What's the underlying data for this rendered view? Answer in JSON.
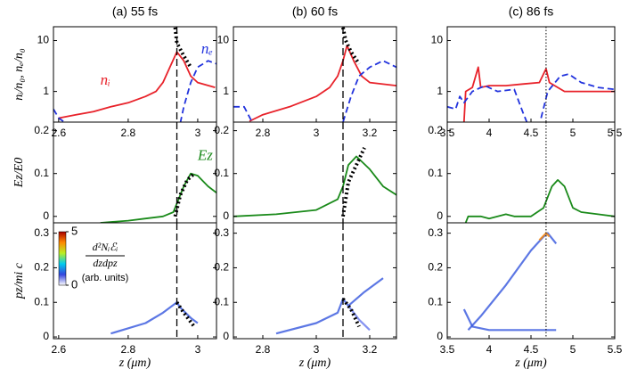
{
  "chart_data": [
    {
      "type": "line",
      "title": "(a) 55 fs",
      "ylabel": "nᵢ/n₀,  nₑ/n₀",
      "log": true,
      "xlim": [
        2.585,
        3.054
      ],
      "xticks": [
        2.6,
        2.8,
        3
      ],
      "ylim": [
        0.25,
        18.7
      ],
      "yticks": [
        1,
        10
      ],
      "vline": 2.94,
      "vline_style": "dashed",
      "annotations": [
        {
          "text": "nᵢ",
          "color": "#e8222a"
        },
        {
          "text": "nₑ",
          "color": "#2233dd"
        }
      ],
      "series": [
        {
          "color": "#e8222a",
          "style": "solid",
          "x": [
            2.6,
            2.65,
            2.7,
            2.75,
            2.8,
            2.85,
            2.88,
            2.9,
            2.92,
            2.94,
            2.96,
            2.98,
            3.0,
            3.05
          ],
          "values": [
            0.3,
            0.35,
            0.4,
            0.5,
            0.6,
            0.8,
            1.0,
            1.5,
            3,
            6,
            4,
            2,
            1.5,
            1.2
          ]
        },
        {
          "color": "#2233dd",
          "style": "dashed",
          "x": [
            2.585,
            2.6,
            2.62,
            null,
            2.95,
            2.96,
            2.98,
            3.0,
            3.03,
            3.054
          ],
          "values": [
            0.45,
            0.3,
            0.24,
            null,
            0.24,
            0.5,
            1.5,
            3,
            4,
            3.5
          ]
        },
        {
          "color": "#000000",
          "style": "dotted",
          "x": [
            2.935,
            2.94,
            2.96,
            2.98
          ],
          "values": [
            18,
            9,
            5,
            3
          ]
        }
      ]
    },
    {
      "type": "line",
      "title": "(b) 60 fs",
      "log": true,
      "xlim": [
        2.69,
        3.3
      ],
      "xticks": [
        2.8,
        3,
        3.2
      ],
      "ylim": [
        0.25,
        18.7
      ],
      "yticks": [
        1,
        10
      ],
      "vline": 3.1,
      "vline_style": "dashed",
      "series": [
        {
          "color": "#e8222a",
          "style": "solid",
          "x": [
            2.75,
            2.8,
            2.9,
            3.0,
            3.05,
            3.08,
            3.1,
            3.115,
            3.14,
            3.17,
            3.2,
            3.3
          ],
          "values": [
            0.26,
            0.35,
            0.5,
            0.8,
            1.2,
            2,
            4,
            8,
            4,
            2,
            1.5,
            1.3
          ]
        },
        {
          "color": "#2233dd",
          "style": "dashed",
          "x": [
            2.69,
            2.73,
            2.76,
            null,
            3.1,
            3.13,
            3.16,
            3.2,
            3.25,
            3.3
          ],
          "values": [
            0.5,
            0.5,
            0.25,
            null,
            0.25,
            0.8,
            2,
            3,
            4,
            3
          ]
        },
        {
          "color": "#000000",
          "style": "dotted",
          "x": [
            3.1,
            3.11,
            3.13,
            3.16
          ],
          "values": [
            18,
            10,
            6,
            3.5
          ]
        }
      ]
    },
    {
      "type": "line",
      "title": "(c) 86 fs",
      "log": true,
      "xlim": [
        3.5,
        5.5
      ],
      "xticks": [
        3.5,
        4,
        4.5,
        5,
        5.5
      ],
      "ylim": [
        0.25,
        18.7
      ],
      "yticks": [
        1,
        10
      ],
      "vline": 4.68,
      "vline_style": "dotted",
      "series": [
        {
          "color": "#e8222a",
          "style": "solid",
          "x": [
            3.7,
            3.72,
            3.8,
            3.87,
            3.9,
            4.0,
            4.2,
            4.4,
            4.6,
            4.68,
            4.72,
            4.9,
            5.1,
            5.3,
            5.5
          ],
          "values": [
            0.25,
            1.0,
            1.2,
            3,
            1.2,
            1.3,
            1.3,
            1.4,
            1.5,
            2.8,
            1.5,
            1.0,
            1.0,
            1.0,
            1.0
          ]
        },
        {
          "color": "#2233dd",
          "style": "dashed",
          "x": [
            3.5,
            3.6,
            3.65,
            3.7,
            3.8,
            3.95,
            4.1,
            4.3,
            4.4,
            4.45,
            null,
            4.62,
            4.7,
            4.85,
            4.95,
            5.1,
            5.3,
            5.5
          ],
          "values": [
            0.5,
            0.45,
            0.8,
            0.6,
            1.0,
            1.3,
            1.0,
            1.1,
            0.4,
            0.25,
            null,
            0.3,
            1.0,
            2,
            2.2,
            1.5,
            1.2,
            1.1
          ]
        }
      ]
    },
    {
      "type": "line",
      "ylabel": "Ez/E0",
      "xlim": [
        2.585,
        3.054
      ],
      "ylim": [
        -0.015,
        0.22
      ],
      "yticks": [
        0,
        0.1,
        0.2
      ],
      "vline": 2.94,
      "vline_style": "dashed",
      "annotations": [
        {
          "text": "Ez",
          "color": "#1a8a1a"
        }
      ],
      "series": [
        {
          "color": "#1a8a1a",
          "style": "solid",
          "x": [
            2.72,
            2.8,
            2.85,
            2.9,
            2.93,
            2.94,
            2.96,
            2.98,
            3.0,
            3.03,
            3.054
          ],
          "values": [
            -0.015,
            -0.01,
            -0.005,
            0,
            0.01,
            0.03,
            0.07,
            0.1,
            0.095,
            0.07,
            0.055
          ]
        },
        {
          "color": "#000000",
          "style": "dotted",
          "x": [
            2.935,
            2.95,
            2.97,
            2.99
          ],
          "values": [
            0,
            0.05,
            0.085,
            0.1
          ]
        }
      ]
    },
    {
      "type": "line",
      "xlim": [
        2.69,
        3.3
      ],
      "ylim": [
        -0.015,
        0.22
      ],
      "yticks": [
        0,
        0.1,
        0.2
      ],
      "vline": 3.1,
      "vline_style": "dashed",
      "series": [
        {
          "color": "#1a8a1a",
          "style": "solid",
          "x": [
            2.69,
            2.85,
            3.0,
            3.08,
            3.1,
            3.12,
            3.15,
            3.2,
            3.25,
            3.3
          ],
          "values": [
            0.0,
            0.005,
            0.015,
            0.04,
            0.07,
            0.12,
            0.14,
            0.11,
            0.07,
            0.05
          ]
        },
        {
          "color": "#000000",
          "style": "dotted",
          "x": [
            3.1,
            3.12,
            3.15,
            3.18
          ],
          "values": [
            0,
            0.08,
            0.12,
            0.16
          ]
        }
      ]
    },
    {
      "type": "line",
      "xlim": [
        3.5,
        5.5
      ],
      "ylim": [
        -0.015,
        0.22
      ],
      "yticks": [
        0,
        0.1,
        0.2
      ],
      "vline": 4.68,
      "vline_style": "dotted",
      "series": [
        {
          "color": "#1a8a1a",
          "style": "solid",
          "x": [
            3.72,
            3.75,
            3.9,
            4.0,
            4.2,
            4.3,
            4.5,
            4.65,
            4.75,
            4.82,
            4.9,
            5.0,
            5.1,
            5.3,
            5.5
          ],
          "values": [
            -0.015,
            0.0,
            0.0,
            -0.005,
            0.005,
            0.0,
            0.0,
            0.02,
            0.07,
            0.085,
            0.07,
            0.02,
            0.01,
            0.005,
            0.0
          ]
        }
      ]
    },
    {
      "type": "line",
      "ylabel": "pz/mi c",
      "xlabel": "z (μm)",
      "xlim": [
        2.585,
        3.054
      ],
      "xticks": [
        2.6,
        2.8,
        3
      ],
      "ylim": [
        -0.005,
        0.33
      ],
      "yticks": [
        0,
        0.1,
        0.2,
        0.3
      ],
      "vline": 2.94,
      "vline_style": "dashed",
      "colorbar": {
        "ticks": [
          0,
          5
        ],
        "numerator": "d²Nᵢℰᵢ",
        "denominator": "dzdpz",
        "units": "(arb. units)"
      },
      "series": [
        {
          "color": "#3355dd",
          "style": "band",
          "x": [
            2.75,
            2.85,
            2.9,
            2.94,
            2.95,
            2.98,
            3.0
          ],
          "values": [
            0.01,
            0.04,
            0.07,
            0.1,
            0.085,
            0.055,
            0.04
          ]
        },
        {
          "color": "#000000",
          "style": "dotted",
          "x": [
            2.94,
            2.96,
            2.99
          ],
          "values": [
            0.1,
            0.07,
            0.03
          ]
        }
      ]
    },
    {
      "type": "line",
      "xlabel": "z (μm)",
      "xlim": [
        2.69,
        3.3
      ],
      "xticks": [
        2.8,
        3,
        3.2
      ],
      "ylim": [
        -0.005,
        0.33
      ],
      "yticks": [
        0,
        0.1,
        0.2,
        0.3
      ],
      "vline": 3.1,
      "vline_style": "dashed",
      "series": [
        {
          "color": "#3355dd",
          "style": "band",
          "x": [
            2.85,
            3.0,
            3.08,
            3.1,
            3.12,
            3.18,
            3.25
          ],
          "values": [
            0.01,
            0.04,
            0.07,
            0.11,
            0.09,
            0.13,
            0.17
          ]
        },
        {
          "color": "#6677ee",
          "style": "band",
          "x": [
            3.12,
            3.16,
            3.2
          ],
          "values": [
            0.09,
            0.05,
            0.02
          ]
        },
        {
          "color": "#000000",
          "style": "dotted",
          "x": [
            3.1,
            3.13,
            3.16
          ],
          "values": [
            0.11,
            0.08,
            0.03
          ]
        }
      ]
    },
    {
      "type": "line",
      "xlabel": "z (μm)",
      "xlim": [
        3.5,
        5.5
      ],
      "xticks": [
        3.5,
        4,
        4.5,
        5,
        5.5
      ],
      "ylim": [
        -0.005,
        0.33
      ],
      "yticks": [
        0,
        0.1,
        0.2,
        0.3
      ],
      "vline": 4.68,
      "vline_style": "dotted",
      "series": [
        {
          "color": "#3355dd",
          "style": "band",
          "x": [
            3.75,
            3.9,
            4.2,
            4.5,
            4.65,
            4.7,
            4.8
          ],
          "values": [
            0.02,
            0.06,
            0.15,
            0.25,
            0.29,
            0.3,
            0.27
          ]
        },
        {
          "color": "#3355dd",
          "style": "band",
          "x": [
            3.7,
            3.8,
            4.0,
            4.5,
            4.8
          ],
          "values": [
            0.08,
            0.03,
            0.02,
            0.02,
            0.02
          ]
        },
        {
          "color": "#ff8800",
          "style": "band",
          "x": [
            4.6,
            4.68,
            4.72
          ],
          "values": [
            0.28,
            0.3,
            0.29
          ]
        }
      ]
    }
  ]
}
